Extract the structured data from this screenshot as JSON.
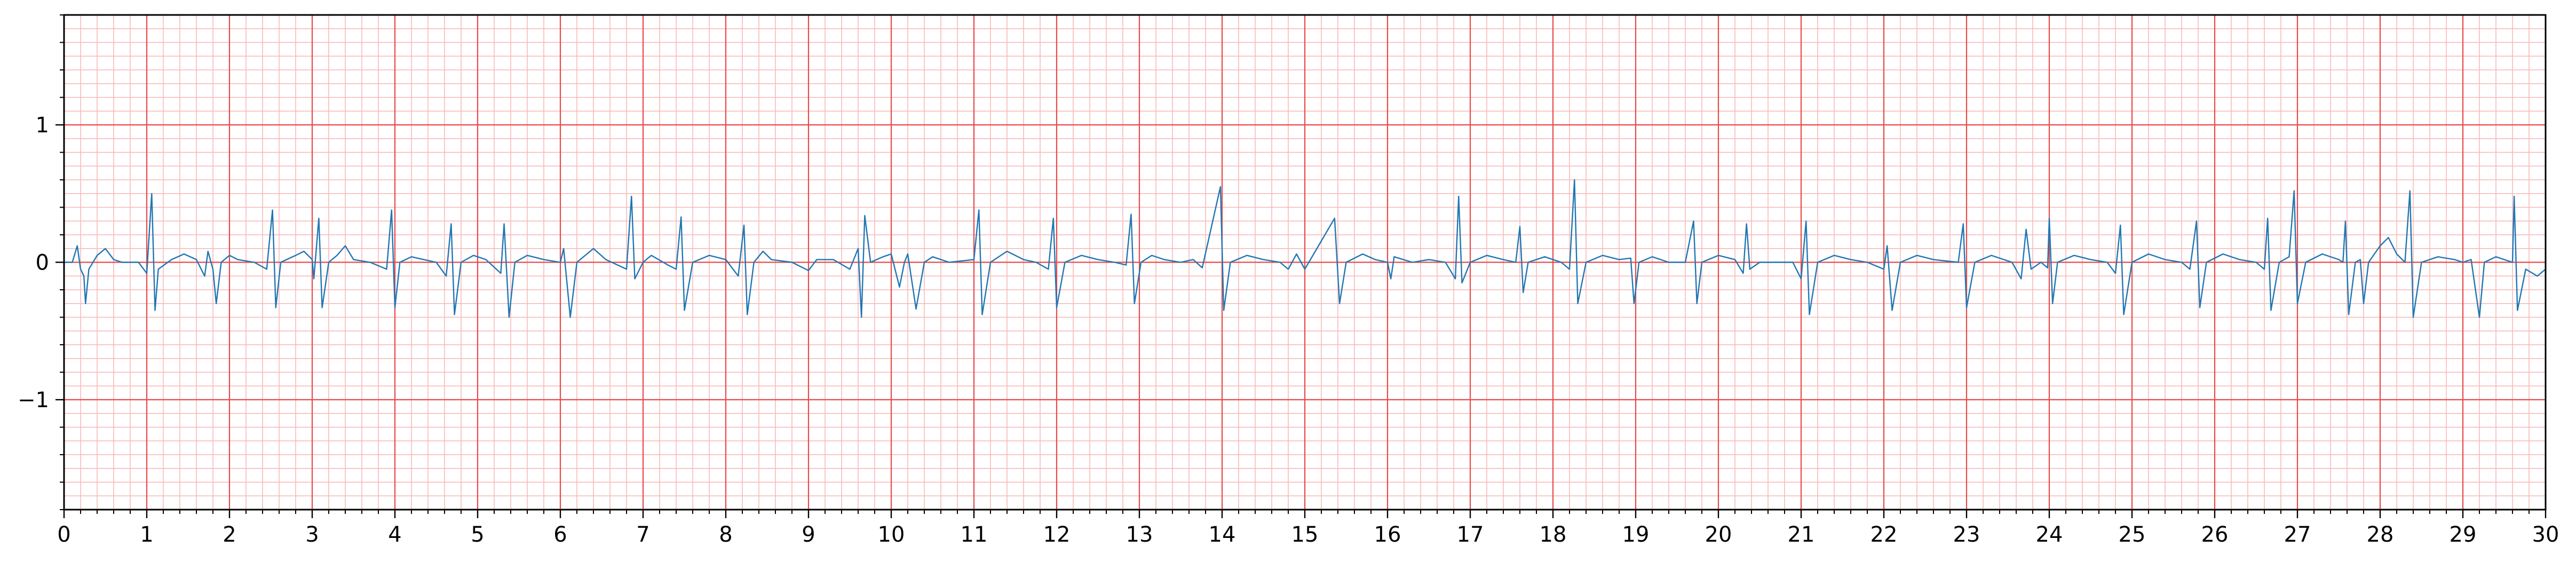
{
  "chart_data": {
    "type": "line",
    "title": "",
    "xlabel": "",
    "ylabel": "",
    "xlim": [
      0,
      30
    ],
    "ylim": [
      -1.8,
      1.8
    ],
    "x_major_ticks": [
      0,
      1,
      2,
      3,
      4,
      5,
      6,
      7,
      8,
      9,
      10,
      11,
      12,
      13,
      14,
      15,
      16,
      17,
      18,
      19,
      20,
      21,
      22,
      23,
      24,
      25,
      26,
      27,
      28,
      29,
      30
    ],
    "x_tick_labels": [
      "0",
      "1",
      "2",
      "3",
      "4",
      "5",
      "6",
      "7",
      "8",
      "9",
      "10",
      "11",
      "12",
      "13",
      "14",
      "15",
      "16",
      "17",
      "18",
      "19",
      "20",
      "21",
      "22",
      "23",
      "24",
      "25",
      "26",
      "27",
      "28",
      "29",
      "30"
    ],
    "y_major_ticks": [
      -1,
      0,
      1
    ],
    "y_tick_labels": [
      "−1",
      "0",
      "1"
    ],
    "grid": {
      "major": true,
      "minor": true,
      "x_minor_step": 0.2,
      "y_minor_step": 0.1,
      "major_color": "#e84a4a",
      "minor_color": "#f7b6b6"
    },
    "series": [
      {
        "color": "#1f77b4",
        "points": [
          [
            0.0,
            0.0
          ],
          [
            0.1,
            0.0
          ],
          [
            0.16,
            0.12
          ],
          [
            0.2,
            -0.05
          ],
          [
            0.24,
            -0.1
          ],
          [
            0.26,
            -0.3
          ],
          [
            0.3,
            -0.05
          ],
          [
            0.4,
            0.05
          ],
          [
            0.5,
            0.1
          ],
          [
            0.6,
            0.02
          ],
          [
            0.7,
            0.0
          ],
          [
            0.9,
            0.0
          ],
          [
            1.0,
            -0.08
          ],
          [
            1.06,
            0.5
          ],
          [
            1.1,
            -0.35
          ],
          [
            1.14,
            -0.05
          ],
          [
            1.3,
            0.02
          ],
          [
            1.45,
            0.06
          ],
          [
            1.6,
            0.02
          ],
          [
            1.7,
            -0.1
          ],
          [
            1.74,
            0.08
          ],
          [
            1.8,
            -0.05
          ],
          [
            1.84,
            -0.3
          ],
          [
            1.9,
            0.0
          ],
          [
            2.0,
            0.05
          ],
          [
            2.1,
            0.02
          ],
          [
            2.3,
            0.0
          ],
          [
            2.45,
            -0.05
          ],
          [
            2.52,
            0.38
          ],
          [
            2.56,
            -0.33
          ],
          [
            2.62,
            0.0
          ],
          [
            2.8,
            0.05
          ],
          [
            2.9,
            0.08
          ],
          [
            3.0,
            0.02
          ],
          [
            3.02,
            -0.12
          ],
          [
            3.08,
            0.32
          ],
          [
            3.12,
            -0.33
          ],
          [
            3.2,
            0.0
          ],
          [
            3.3,
            0.05
          ],
          [
            3.4,
            0.12
          ],
          [
            3.5,
            0.02
          ],
          [
            3.7,
            0.0
          ],
          [
            3.9,
            -0.05
          ],
          [
            3.96,
            0.38
          ],
          [
            4.0,
            -0.33
          ],
          [
            4.06,
            0.0
          ],
          [
            4.2,
            0.04
          ],
          [
            4.35,
            0.02
          ],
          [
            4.5,
            0.0
          ],
          [
            4.62,
            -0.1
          ],
          [
            4.68,
            0.28
          ],
          [
            4.72,
            -0.38
          ],
          [
            4.8,
            0.0
          ],
          [
            4.95,
            0.05
          ],
          [
            5.1,
            0.02
          ],
          [
            5.28,
            -0.08
          ],
          [
            5.32,
            0.28
          ],
          [
            5.38,
            -0.4
          ],
          [
            5.45,
            0.0
          ],
          [
            5.6,
            0.05
          ],
          [
            5.8,
            0.02
          ],
          [
            6.0,
            0.0
          ],
          [
            6.04,
            0.1
          ],
          [
            6.12,
            -0.4
          ],
          [
            6.2,
            0.0
          ],
          [
            6.4,
            0.1
          ],
          [
            6.55,
            0.02
          ],
          [
            6.8,
            -0.05
          ],
          [
            6.86,
            0.48
          ],
          [
            6.9,
            -0.12
          ],
          [
            7.0,
            0.0
          ],
          [
            7.1,
            0.05
          ],
          [
            7.3,
            -0.02
          ],
          [
            7.4,
            -0.05
          ],
          [
            7.46,
            0.33
          ],
          [
            7.5,
            -0.35
          ],
          [
            7.6,
            0.0
          ],
          [
            7.8,
            0.05
          ],
          [
            8.0,
            0.02
          ],
          [
            8.15,
            -0.1
          ],
          [
            8.22,
            0.27
          ],
          [
            8.26,
            -0.38
          ],
          [
            8.34,
            0.0
          ],
          [
            8.45,
            0.08
          ],
          [
            8.55,
            0.02
          ],
          [
            8.8,
            0.0
          ],
          [
            9.0,
            -0.06
          ],
          [
            9.1,
            0.02
          ],
          [
            9.3,
            0.02
          ],
          [
            9.5,
            -0.05
          ],
          [
            9.6,
            0.1
          ],
          [
            9.64,
            -0.4
          ],
          [
            9.68,
            0.34
          ],
          [
            9.75,
            0.0
          ],
          [
            9.9,
            0.04
          ],
          [
            10.0,
            0.06
          ],
          [
            10.1,
            -0.18
          ],
          [
            10.16,
            0.0
          ],
          [
            10.2,
            0.06
          ],
          [
            10.3,
            -0.34
          ],
          [
            10.4,
            0.0
          ],
          [
            10.5,
            0.04
          ],
          [
            10.7,
            0.0
          ],
          [
            11.0,
            0.02
          ],
          [
            11.06,
            0.38
          ],
          [
            11.1,
            -0.38
          ],
          [
            11.2,
            0.0
          ],
          [
            11.4,
            0.08
          ],
          [
            11.6,
            0.02
          ],
          [
            11.75,
            0.0
          ],
          [
            11.9,
            -0.05
          ],
          [
            11.96,
            0.32
          ],
          [
            12.0,
            -0.33
          ],
          [
            12.1,
            0.0
          ],
          [
            12.3,
            0.05
          ],
          [
            12.5,
            0.02
          ],
          [
            12.7,
            0.0
          ],
          [
            12.84,
            -0.02
          ],
          [
            12.9,
            0.35
          ],
          [
            12.94,
            -0.3
          ],
          [
            13.02,
            0.0
          ],
          [
            13.15,
            0.05
          ],
          [
            13.3,
            0.02
          ],
          [
            13.5,
            0.0
          ],
          [
            13.65,
            0.02
          ],
          [
            13.76,
            -0.04
          ],
          [
            13.98,
            0.55
          ],
          [
            14.02,
            -0.35
          ],
          [
            14.1,
            0.0
          ],
          [
            14.3,
            0.05
          ],
          [
            14.5,
            0.02
          ],
          [
            14.7,
            0.0
          ],
          [
            14.8,
            -0.05
          ],
          [
            14.9,
            0.06
          ],
          [
            15.0,
            -0.05
          ],
          [
            15.36,
            0.32
          ],
          [
            15.42,
            -0.3
          ],
          [
            15.5,
            0.0
          ],
          [
            15.7,
            0.06
          ],
          [
            15.85,
            0.02
          ],
          [
            16.0,
            0.0
          ],
          [
            16.04,
            -0.12
          ],
          [
            16.08,
            0.04
          ],
          [
            16.3,
            0.0
          ],
          [
            16.5,
            0.02
          ],
          [
            16.7,
            0.0
          ],
          [
            16.82,
            -0.12
          ],
          [
            16.86,
            0.48
          ],
          [
            16.9,
            -0.15
          ],
          [
            17.0,
            0.0
          ],
          [
            17.2,
            0.05
          ],
          [
            17.4,
            0.02
          ],
          [
            17.55,
            0.0
          ],
          [
            17.6,
            0.26
          ],
          [
            17.64,
            -0.22
          ],
          [
            17.7,
            0.0
          ],
          [
            17.9,
            0.04
          ],
          [
            18.1,
            0.0
          ],
          [
            18.2,
            -0.05
          ],
          [
            18.26,
            0.6
          ],
          [
            18.3,
            -0.3
          ],
          [
            18.4,
            0.0
          ],
          [
            18.6,
            0.05
          ],
          [
            18.8,
            0.02
          ],
          [
            18.94,
            0.03
          ],
          [
            18.98,
            -0.3
          ],
          [
            19.04,
            0.0
          ],
          [
            19.2,
            0.04
          ],
          [
            19.4,
            0.0
          ],
          [
            19.6,
            0.0
          ],
          [
            19.7,
            0.3
          ],
          [
            19.74,
            -0.3
          ],
          [
            19.8,
            0.0
          ],
          [
            20.0,
            0.05
          ],
          [
            20.2,
            0.02
          ],
          [
            20.3,
            -0.08
          ],
          [
            20.34,
            0.28
          ],
          [
            20.38,
            -0.05
          ],
          [
            20.5,
            0.0
          ],
          [
            20.9,
            0.0
          ],
          [
            21.0,
            -0.12
          ],
          [
            21.06,
            0.3
          ],
          [
            21.1,
            -0.38
          ],
          [
            21.2,
            0.0
          ],
          [
            21.4,
            0.05
          ],
          [
            21.6,
            0.02
          ],
          [
            21.8,
            0.0
          ],
          [
            22.0,
            -0.05
          ],
          [
            22.04,
            0.12
          ],
          [
            22.1,
            -0.35
          ],
          [
            22.2,
            0.0
          ],
          [
            22.4,
            0.05
          ],
          [
            22.6,
            0.02
          ],
          [
            22.9,
            0.0
          ],
          [
            22.96,
            0.28
          ],
          [
            23.0,
            -0.33
          ],
          [
            23.1,
            0.0
          ],
          [
            23.3,
            0.05
          ],
          [
            23.45,
            0.02
          ],
          [
            23.55,
            0.0
          ],
          [
            23.66,
            -0.12
          ],
          [
            23.72,
            0.24
          ],
          [
            23.78,
            -0.05
          ],
          [
            23.9,
            0.0
          ],
          [
            23.98,
            -0.04
          ],
          [
            24.0,
            0.32
          ],
          [
            24.04,
            -0.3
          ],
          [
            24.1,
            0.0
          ],
          [
            24.3,
            0.05
          ],
          [
            24.5,
            0.02
          ],
          [
            24.7,
            0.0
          ],
          [
            24.8,
            -0.08
          ],
          [
            24.86,
            0.27
          ],
          [
            24.9,
            -0.38
          ],
          [
            25.0,
            0.0
          ],
          [
            25.2,
            0.06
          ],
          [
            25.4,
            0.02
          ],
          [
            25.6,
            0.0
          ],
          [
            25.7,
            -0.05
          ],
          [
            25.78,
            0.3
          ],
          [
            25.82,
            -0.33
          ],
          [
            25.9,
            0.0
          ],
          [
            26.1,
            0.06
          ],
          [
            26.3,
            0.02
          ],
          [
            26.5,
            0.0
          ],
          [
            26.6,
            -0.05
          ],
          [
            26.64,
            0.32
          ],
          [
            26.68,
            -0.35
          ],
          [
            26.78,
            0.0
          ],
          [
            26.9,
            0.04
          ],
          [
            26.96,
            0.52
          ],
          [
            27.0,
            -0.3
          ],
          [
            27.1,
            0.0
          ],
          [
            27.3,
            0.06
          ],
          [
            27.5,
            0.02
          ],
          [
            27.55,
            0.0
          ],
          [
            27.58,
            0.3
          ],
          [
            27.62,
            -0.38
          ],
          [
            27.7,
            0.0
          ],
          [
            27.76,
            0.02
          ],
          [
            27.8,
            -0.3
          ],
          [
            27.86,
            0.0
          ],
          [
            28.0,
            0.12
          ],
          [
            28.1,
            0.18
          ],
          [
            28.2,
            0.06
          ],
          [
            28.3,
            0.0
          ],
          [
            28.36,
            0.52
          ],
          [
            28.4,
            -0.4
          ],
          [
            28.5,
            0.0
          ],
          [
            28.7,
            0.04
          ],
          [
            28.9,
            0.02
          ],
          [
            29.0,
            0.0
          ],
          [
            29.1,
            0.02
          ],
          [
            29.2,
            -0.4
          ],
          [
            29.26,
            0.0
          ],
          [
            29.4,
            0.04
          ],
          [
            29.5,
            0.02
          ],
          [
            29.6,
            0.0
          ],
          [
            29.62,
            0.48
          ],
          [
            29.66,
            -0.35
          ],
          [
            29.76,
            -0.05
          ],
          [
            29.9,
            -0.1
          ],
          [
            30.0,
            -0.05
          ]
        ]
      }
    ]
  }
}
